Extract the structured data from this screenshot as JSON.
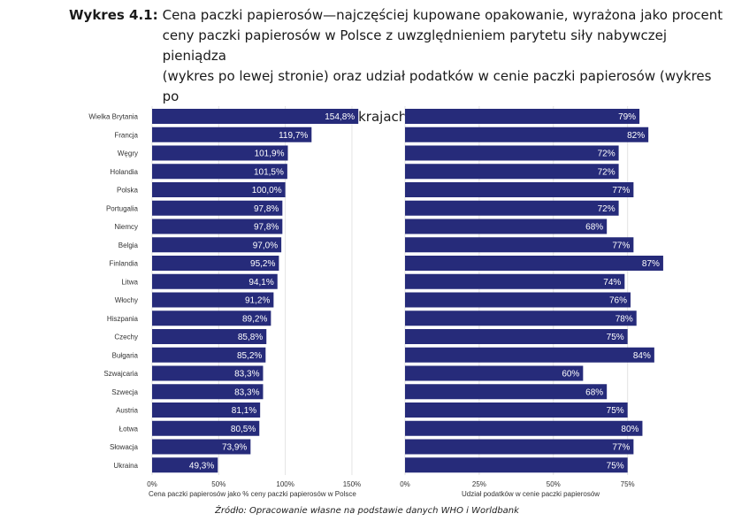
{
  "figure": {
    "label": "Wykres 4.1:",
    "title": "Cena paczki papierosów—najczęściej kupowane opakowanie, wyrażona jako procent\nceny paczki papierosów w Polsce z uwzględnieniem parytetu siły nabywczej pieniądza\n(wykres po lewej stronie) oraz udział podatków w cenie paczki papierosów (wykres po\nprawej stronie) w wybranych krajach (2018)",
    "source": "Źródło: Opracowanie własne na podstawie danych WHO i Worldbank"
  },
  "colors": {
    "bar": "#262b7a",
    "bar_label": "#ffffff",
    "grid": "#e3e3e3",
    "text": "#333333"
  },
  "chart_data": [
    {
      "type": "bar",
      "orientation": "horizontal",
      "categories": [
        "Wielka Brytania",
        "Francja",
        "Węgry",
        "Holandia",
        "Polska",
        "Portugalia",
        "Niemcy",
        "Belgia",
        "Finlandia",
        "Litwa",
        "Włochy",
        "Hiszpania",
        "Czechy",
        "Bułgaria",
        "Szwajcaria",
        "Szwecja",
        "Austria",
        "Łotwa",
        "Słowacja",
        "Ukraina"
      ],
      "values": [
        154.8,
        119.7,
        101.9,
        101.5,
        100.0,
        97.8,
        97.8,
        97.0,
        95.2,
        94.1,
        91.2,
        89.2,
        85.8,
        85.2,
        83.3,
        83.3,
        81.1,
        80.5,
        73.9,
        49.3
      ],
      "value_labels": [
        "154,8%",
        "119,7%",
        "101,9%",
        "101,5%",
        "100,0%",
        "97,8%",
        "97,8%",
        "97,0%",
        "95,2%",
        "94,1%",
        "91,2%",
        "89,2%",
        "85,8%",
        "85,2%",
        "83,3%",
        "83,3%",
        "81,1%",
        "80,5%",
        "73,9%",
        "49,3%"
      ],
      "xlabel": "Cena paczki papierosów jako % ceny paczki papierosów w Polsce",
      "xlim": [
        0,
        160
      ],
      "xticks": [
        0,
        50,
        100,
        150
      ],
      "xtick_labels": [
        "0%",
        "50%",
        "100%",
        "150%"
      ],
      "grid": true
    },
    {
      "type": "bar",
      "orientation": "horizontal",
      "categories": [
        "Wielka Brytania",
        "Francja",
        "Węgry",
        "Holandia",
        "Polska",
        "Portugalia",
        "Niemcy",
        "Belgia",
        "Finlandia",
        "Litwa",
        "Włochy",
        "Hiszpania",
        "Czechy",
        "Bułgaria",
        "Szwajcaria",
        "Szwecja",
        "Austria",
        "Łotwa",
        "Słowacja",
        "Ukraina"
      ],
      "values": [
        79,
        82,
        72,
        72,
        77,
        72,
        68,
        77,
        87,
        74,
        76,
        78,
        75,
        84,
        60,
        68,
        75,
        80,
        77,
        75
      ],
      "value_labels": [
        "79%",
        "82%",
        "72%",
        "72%",
        "77%",
        "72%",
        "68%",
        "77%",
        "87%",
        "74%",
        "76%",
        "78%",
        "75%",
        "84%",
        "60%",
        "68%",
        "75%",
        "80%",
        "77%",
        "75%"
      ],
      "xlabel": "Udział podatków w cenie paczki papierosów",
      "xlim": [
        0,
        90
      ],
      "xticks": [
        0,
        25,
        50,
        75
      ],
      "xtick_labels": [
        "0%",
        "25%",
        "50%",
        "75%"
      ],
      "grid": true
    }
  ]
}
